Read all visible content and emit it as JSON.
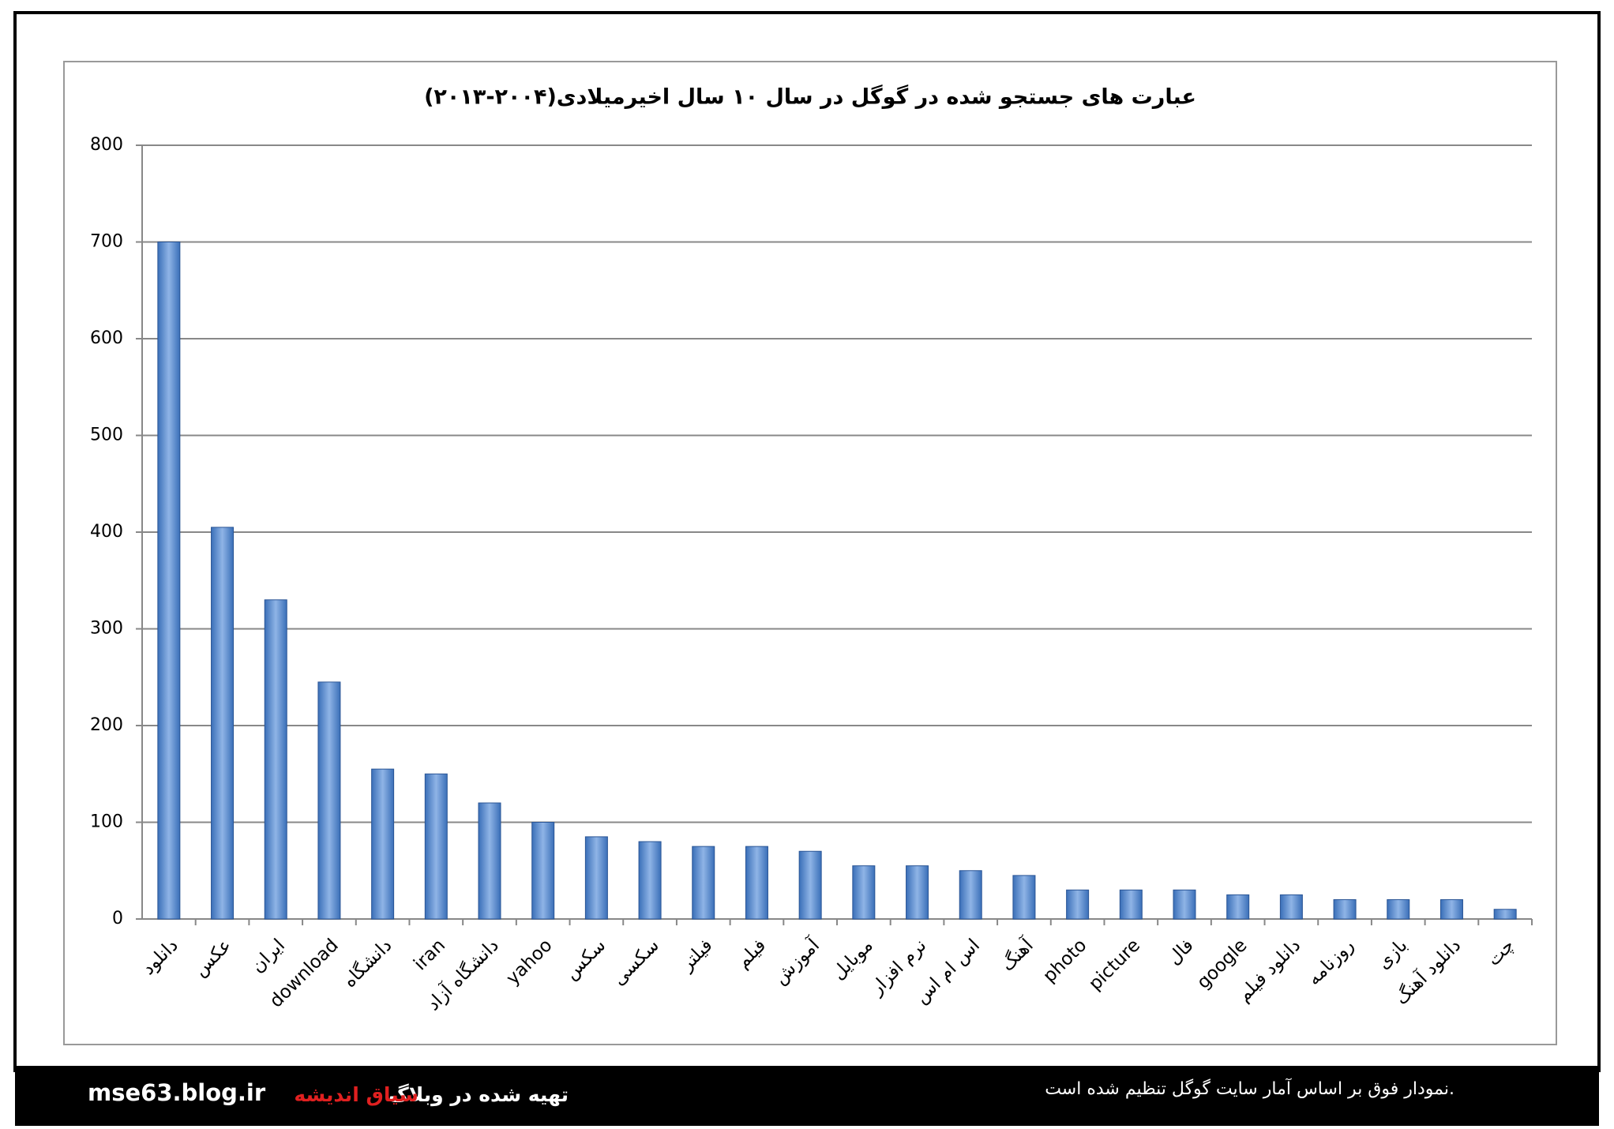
{
  "chart_data": {
    "type": "bar",
    "title": "عبارت های جستجو شده در گوگل در سال ۱۰ سال اخیرمیلادی(۲۰۰۴-۲۰۱۳)",
    "categories": [
      "دانلود",
      "عکس",
      "ایران",
      "download",
      "دانشگاه",
      "iran",
      "دانشگاه آزاد",
      "yahoo",
      "سکس",
      "سکسی",
      "فیلتر",
      "فیلم",
      "آموزش",
      "موبایل",
      "نرم افزار",
      "اس ام اس",
      "آهنگ",
      "photo",
      "picture",
      "فال",
      "google",
      "دانلود فیلم",
      "روزنامه",
      "بازی",
      "دانلود آهنگ",
      "چت"
    ],
    "values": [
      700,
      405,
      330,
      245,
      155,
      150,
      120,
      100,
      85,
      80,
      75,
      75,
      70,
      55,
      55,
      50,
      45,
      30,
      30,
      30,
      25,
      25,
      20,
      20,
      20,
      10
    ],
    "color": "#3a6fb8",
    "ylim": [
      0,
      800
    ],
    "yticks": [
      0,
      100,
      200,
      300,
      400,
      500,
      600,
      700,
      800
    ],
    "grid": true
  },
  "footer": {
    "site": "mse63.blog.ir",
    "made_in": "تهیه شده در وبلاگ",
    "blog_name": "سیاق اندیشه",
    "note": "نمودار فوق بر اساس آمار سایت گوگل تنظیم شده است."
  }
}
